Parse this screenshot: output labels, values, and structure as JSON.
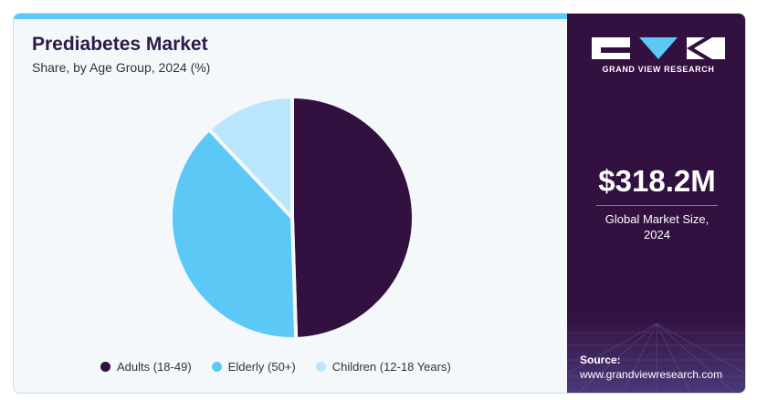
{
  "header": {
    "title": "Prediabetes Market",
    "subtitle": "Share, by Age Group, 2024 (%)"
  },
  "brand": {
    "name": "GRAND VIEW RESEARCH"
  },
  "sidebar": {
    "market_size": "$318.2M",
    "market_size_label_line1": "Global Market Size,",
    "market_size_label_line2": "2024",
    "source_label": "Source:",
    "source_url": "www.grandviewresearch.com"
  },
  "colors": {
    "adults": "#32103f",
    "elderly": "#5bc8f5",
    "children": "#b9e6fb",
    "accent_bar": "#5bc8f5",
    "sidebar_bg": "#32103f"
  },
  "chart_data": {
    "type": "pie",
    "title": "Prediabetes Market",
    "subtitle": "Share, by Age Group, 2024 (%)",
    "legend_position": "bottom",
    "slices": [
      {
        "label": "Adults (18-49)",
        "value": 49.5
      },
      {
        "label": "Elderly (50+)",
        "value": 38.5
      },
      {
        "label": "Children (12-18 Years)",
        "value": 12.0
      }
    ]
  }
}
